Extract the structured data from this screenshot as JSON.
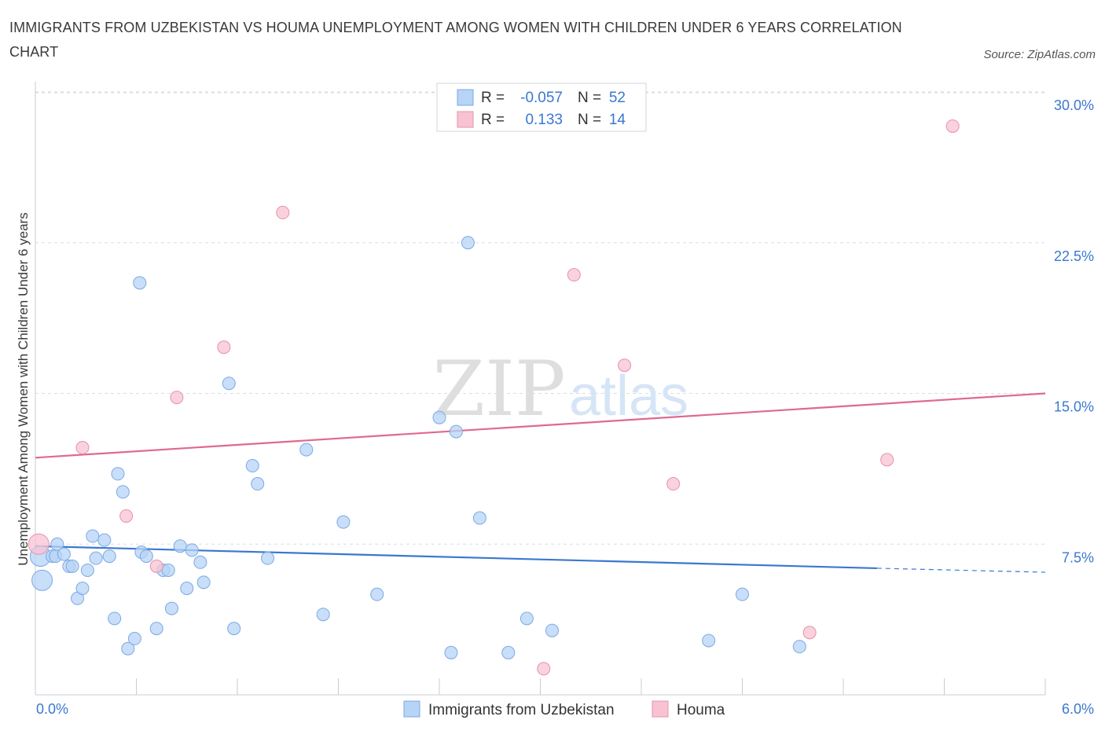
{
  "title": "IMMIGRANTS FROM UZBEKISTAN VS HOUMA UNEMPLOYMENT AMONG WOMEN WITH CHILDREN UNDER 6 YEARS CORRELATION CHART",
  "source": "Source: ZipAtlas.com",
  "watermark": {
    "zip": "ZIP",
    "atlas": "atlas"
  },
  "colors": {
    "blue_fill": "#b7d3f6",
    "blue_stroke": "#7aaae4",
    "blue_line": "#3a78cf",
    "pink_fill": "#f7c3d2",
    "pink_stroke": "#e890ac",
    "pink_line": "#e0698f",
    "axis_text": "#3a78cf",
    "grid": "#d8dde4"
  },
  "legend": {
    "rows": [
      {
        "r_label": "R =",
        "r_value": "-0.057",
        "n_label": "N =",
        "n_value": "52",
        "series": "blue"
      },
      {
        "r_label": "R =",
        "r_value": "0.133",
        "n_label": "N =",
        "n_value": "14",
        "series": "pink"
      }
    ]
  },
  "chart_data": {
    "type": "scatter",
    "xlabel": "",
    "ylabel": "Unemployment Among Women with Children Under 6 years",
    "xlim": [
      0,
      6
    ],
    "ylim": [
      0,
      30
    ],
    "x_tick_labels": [
      "0.0%",
      "6.0%"
    ],
    "y_tick_values": [
      7.5,
      15.0,
      22.5,
      30.0
    ],
    "y_tick_labels": [
      "7.5%",
      "15.0%",
      "22.5%",
      "30.0%"
    ],
    "grid": "horizontal dashed",
    "series": [
      {
        "name": "Immigrants from Uzbekistan",
        "color": "blue",
        "r": -0.057,
        "n": 52,
        "trend": {
          "x0": 0.0,
          "y0": 7.4,
          "x1": 5.0,
          "y1": 6.3,
          "dashed_to_x": 6.0,
          "dashed_to_y": 6.1
        },
        "points": [
          [
            0.03,
            6.9,
            2
          ],
          [
            0.04,
            5.7,
            2
          ],
          [
            0.1,
            6.9,
            1
          ],
          [
            0.12,
            6.9,
            1
          ],
          [
            0.13,
            7.5,
            1
          ],
          [
            0.17,
            7.0,
            1
          ],
          [
            0.2,
            6.4,
            1
          ],
          [
            0.22,
            6.4,
            1
          ],
          [
            0.25,
            4.8,
            1
          ],
          [
            0.28,
            5.3,
            1
          ],
          [
            0.31,
            6.2,
            1
          ],
          [
            0.34,
            7.9,
            1
          ],
          [
            0.36,
            6.8,
            1
          ],
          [
            0.41,
            7.7,
            1
          ],
          [
            0.44,
            6.9,
            1
          ],
          [
            0.47,
            3.8,
            1
          ],
          [
            0.49,
            11.0,
            1
          ],
          [
            0.52,
            10.1,
            1
          ],
          [
            0.55,
            2.3,
            1
          ],
          [
            0.59,
            2.8,
            1
          ],
          [
            0.62,
            20.5,
            1
          ],
          [
            0.63,
            7.1,
            1
          ],
          [
            0.66,
            6.9,
            1
          ],
          [
            0.72,
            3.3,
            1
          ],
          [
            0.76,
            6.2,
            1
          ],
          [
            0.79,
            6.2,
            1
          ],
          [
            0.81,
            4.3,
            1
          ],
          [
            0.86,
            7.4,
            1
          ],
          [
            0.9,
            5.3,
            1
          ],
          [
            0.93,
            7.2,
            1
          ],
          [
            0.98,
            6.6,
            1
          ],
          [
            1.0,
            5.6,
            1
          ],
          [
            1.15,
            15.5,
            1
          ],
          [
            1.18,
            3.3,
            1
          ],
          [
            1.29,
            11.4,
            1
          ],
          [
            1.32,
            10.5,
            1
          ],
          [
            1.38,
            6.8,
            1
          ],
          [
            1.61,
            12.2,
            1
          ],
          [
            1.71,
            4.0,
            1
          ],
          [
            1.83,
            8.6,
            1
          ],
          [
            2.03,
            5.0,
            1
          ],
          [
            2.4,
            13.8,
            1
          ],
          [
            2.47,
            2.1,
            1
          ],
          [
            2.5,
            13.1,
            1
          ],
          [
            2.57,
            22.5,
            1
          ],
          [
            2.64,
            8.8,
            1
          ],
          [
            2.81,
            2.1,
            1
          ],
          [
            2.92,
            3.8,
            1
          ],
          [
            3.07,
            3.2,
            1
          ],
          [
            4.0,
            2.7,
            1
          ],
          [
            4.2,
            5.0,
            1
          ],
          [
            4.54,
            2.4,
            1
          ]
        ]
      },
      {
        "name": "Houma",
        "color": "pink",
        "r": 0.133,
        "n": 14,
        "trend": {
          "x0": 0.0,
          "y0": 11.8,
          "x1": 6.0,
          "y1": 15.0
        },
        "points": [
          [
            0.02,
            7.5,
            2
          ],
          [
            0.28,
            12.3,
            1
          ],
          [
            0.54,
            8.9,
            1
          ],
          [
            0.72,
            6.4,
            1
          ],
          [
            0.84,
            14.8,
            1
          ],
          [
            1.12,
            17.3,
            1
          ],
          [
            1.47,
            24.0,
            1
          ],
          [
            3.2,
            20.9,
            1
          ],
          [
            3.5,
            16.4,
            1
          ],
          [
            3.02,
            1.3,
            1
          ],
          [
            3.79,
            10.5,
            1
          ],
          [
            4.6,
            3.1,
            1
          ],
          [
            5.06,
            11.7,
            1
          ],
          [
            5.45,
            28.3,
            1
          ]
        ]
      }
    ]
  }
}
